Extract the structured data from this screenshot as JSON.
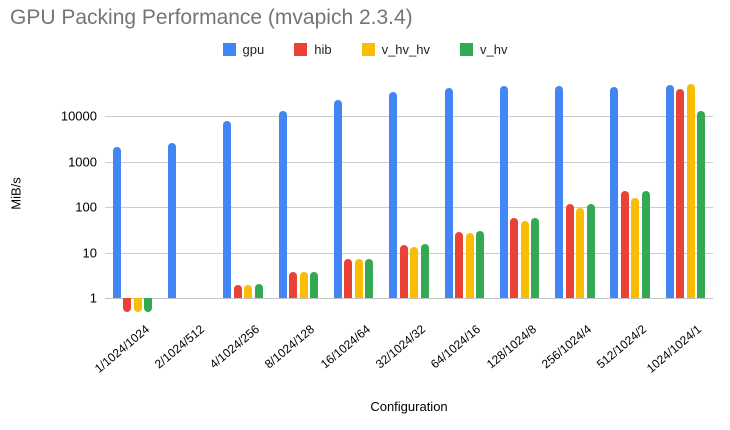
{
  "chart_title": "GPU Packing Performance (mvapich 2.3.4)",
  "chart_data": {
    "type": "bar",
    "title": "GPU Packing Performance (mvapich 2.3.4)",
    "xlabel": "Configuration",
    "ylabel": "MiB/s",
    "y_scale": "log",
    "grid": true,
    "legend_position": "top",
    "y_ticks": [
      1,
      10,
      100,
      1000,
      10000
    ],
    "ylim": [
      0.47,
      70000
    ],
    "categories": [
      "1/1024/1024",
      "2/1024/512",
      "4/1024/256",
      "8/1024/128",
      "16/1024/64",
      "32/1024/32",
      "64/1024/16",
      "128/1024/8",
      "256/1024/4",
      "512/1024/2",
      "1024/1024/1"
    ],
    "series": [
      {
        "name": "gpu",
        "color": "#4285F4",
        "values": [
          2100,
          2600,
          8000,
          13000,
          23000,
          34000,
          43000,
          46000,
          47000,
          45000,
          50000
        ]
      },
      {
        "name": "hib",
        "color": "#EA4335",
        "values": [
          0.5,
          1,
          1.9,
          3.7,
          7.2,
          14.5,
          28,
          58,
          115,
          230,
          41000
        ]
      },
      {
        "name": "v_hv_hv",
        "color": "#FBBC04",
        "values": [
          0.5,
          1,
          1.9,
          3.7,
          7.2,
          13.5,
          27,
          49,
          96,
          160,
          51000
        ]
      },
      {
        "name": "v_hv",
        "color": "#34A853",
        "values": [
          0.5,
          1,
          2.0,
          3.8,
          7.4,
          15.5,
          30,
          58,
          118,
          230,
          13000
        ]
      }
    ]
  }
}
